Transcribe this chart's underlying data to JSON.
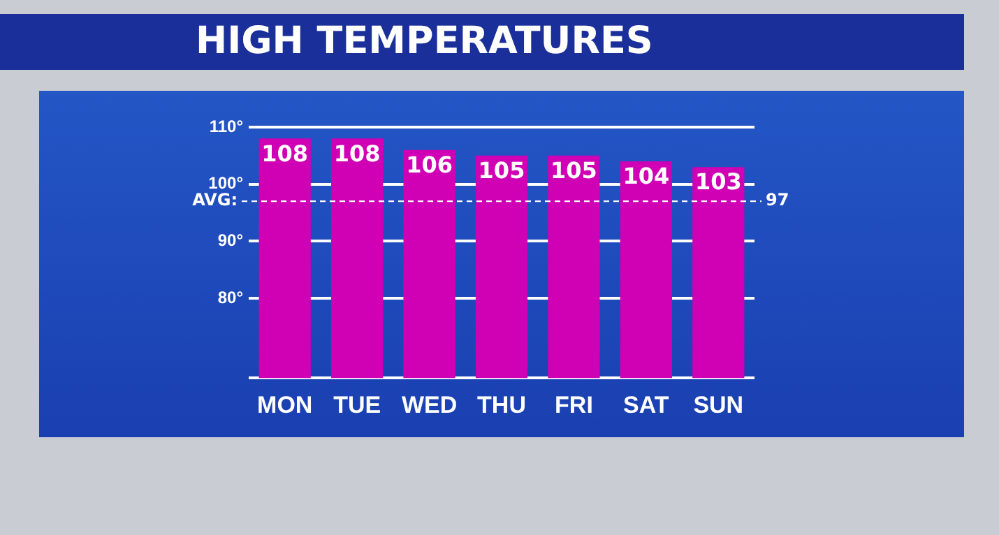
{
  "chart_data": {
    "type": "bar",
    "title": "HIGH TEMPERATURES",
    "categories": [
      "MON",
      "TUE",
      "WED",
      "THU",
      "FRI",
      "SAT",
      "SUN"
    ],
    "values": [
      108,
      108,
      106,
      105,
      105,
      104,
      103
    ],
    "color": "#d000b4",
    "data_labels": true,
    "ylim": [
      66,
      110
    ],
    "yticks": [
      {
        "value": 66,
        "label": null
      },
      {
        "value": 80,
        "label": "80°"
      },
      {
        "value": 90,
        "label": "90°"
      },
      {
        "value": 100,
        "label": "100°"
      },
      {
        "value": 110,
        "label": "110°"
      }
    ],
    "grid": "y",
    "legend": false,
    "ref_lines": [
      {
        "axis": "y",
        "value": 97,
        "label": "AVG:",
        "line_style": "dashed"
      }
    ],
    "annotations": [
      "97"
    ]
  }
}
